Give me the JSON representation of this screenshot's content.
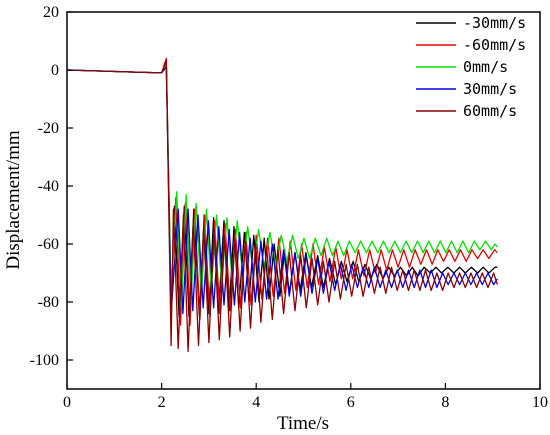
{
  "chart_data": {
    "type": "line",
    "title": "",
    "xlabel": "Time/s",
    "ylabel": "Displacement/mm",
    "xlim": [
      0,
      10
    ],
    "ylim": [
      -110,
      20
    ],
    "x_ticks": [
      0,
      2,
      4,
      6,
      8,
      10
    ],
    "y_ticks": [
      20,
      0,
      -20,
      -40,
      -60,
      -80,
      -100
    ],
    "grid": false,
    "legend_position": "top-right",
    "series": [
      {
        "name": "-30mm/s",
        "color": "#000000",
        "x": [
          0,
          2.0,
          2.1,
          2.2,
          2.27,
          2.37,
          2.48,
          2.58,
          2.68,
          2.8,
          2.9,
          3.0,
          3.1,
          3.2,
          3.32,
          3.43,
          3.53,
          3.63,
          3.75,
          3.85,
          3.95,
          4.06,
          4.17,
          4.27,
          4.38,
          4.5,
          4.6,
          4.7,
          4.82,
          4.93,
          5.05,
          5.17,
          5.3,
          5.42,
          5.55,
          5.68,
          5.8,
          5.92,
          6.05,
          6.17,
          6.3,
          6.42,
          6.55,
          6.68,
          6.8,
          6.92,
          7.05,
          7.18,
          7.3,
          7.42,
          7.55,
          7.68,
          7.8,
          7.92,
          8.05,
          8.18,
          8.3,
          8.42,
          8.55,
          8.68,
          8.8,
          8.92,
          9.05,
          9.1
        ],
        "y": [
          0,
          -1,
          3,
          -85,
          -47,
          -85,
          -47,
          -85,
          -48,
          -85,
          -50,
          -84,
          -51,
          -84,
          -52,
          -83,
          -54,
          -82,
          -56,
          -80,
          -57,
          -80,
          -58,
          -79,
          -60,
          -78,
          -62,
          -77,
          -63,
          -76,
          -63,
          -75,
          -64,
          -75,
          -65,
          -74,
          -66,
          -73,
          -66,
          -73,
          -67,
          -72,
          -67,
          -72,
          -68,
          -71,
          -68,
          -71,
          -68,
          -71,
          -68,
          -70,
          -68,
          -70,
          -68,
          -70,
          -68,
          -70,
          -68,
          -70,
          -68,
          -70,
          -68,
          -68
        ]
      },
      {
        "name": "-60mm/s",
        "color": "#e00000",
        "x": [
          0,
          2.0,
          2.1,
          2.2,
          2.3,
          2.4,
          2.5,
          2.6,
          2.7,
          2.81,
          2.91,
          3.02,
          3.12,
          3.23,
          3.34,
          3.45,
          3.56,
          3.67,
          3.78,
          3.89,
          4.0,
          4.12,
          4.24,
          4.36,
          4.48,
          4.6,
          4.72,
          4.84,
          4.96,
          5.08,
          5.2,
          5.32,
          5.44,
          5.56,
          5.68,
          5.8,
          5.92,
          6.04,
          6.16,
          6.28,
          6.4,
          6.52,
          6.64,
          6.76,
          6.88,
          7.0,
          7.12,
          7.24,
          7.36,
          7.48,
          7.6,
          7.72,
          7.84,
          7.96,
          8.08,
          8.2,
          8.32,
          8.44,
          8.56,
          8.68,
          8.8,
          8.92,
          9.04,
          9.1
        ],
        "y": [
          0,
          -1,
          4,
          -80,
          -44,
          -88,
          -46,
          -88,
          -48,
          -86,
          -50,
          -85,
          -52,
          -84,
          -53,
          -83,
          -55,
          -82,
          -56,
          -81,
          -57,
          -79,
          -58,
          -78,
          -58,
          -77,
          -59,
          -76,
          -60,
          -75,
          -60,
          -74,
          -61,
          -73,
          -61,
          -72,
          -62,
          -72,
          -62,
          -71,
          -62,
          -70,
          -62,
          -69,
          -62,
          -68,
          -62,
          -68,
          -62,
          -67,
          -62,
          -67,
          -62,
          -66,
          -62,
          -66,
          -62,
          -66,
          -62,
          -65,
          -62,
          -65,
          -62,
          -63
        ]
      },
      {
        "name": "0mm/s",
        "color": "#00e000",
        "x": [
          0,
          2.0,
          2.1,
          2.2,
          2.32,
          2.42,
          2.52,
          2.62,
          2.73,
          2.84,
          2.95,
          3.05,
          3.16,
          3.27,
          3.38,
          3.49,
          3.6,
          3.71,
          3.82,
          3.93,
          4.05,
          4.17,
          4.29,
          4.41,
          4.53,
          4.65,
          4.77,
          4.89,
          5.01,
          5.13,
          5.25,
          5.37,
          5.49,
          5.61,
          5.73,
          5.85,
          5.97,
          6.09,
          6.21,
          6.33,
          6.45,
          6.57,
          6.69,
          6.81,
          6.93,
          7.05,
          7.17,
          7.29,
          7.41,
          7.53,
          7.65,
          7.77,
          7.89,
          8.01,
          8.13,
          8.25,
          8.37,
          8.49,
          8.61,
          8.73,
          8.85,
          8.97,
          9.05,
          9.1
        ],
        "y": [
          0,
          -1,
          2,
          -78,
          -42,
          -82,
          -43,
          -80,
          -46,
          -78,
          -48,
          -76,
          -50,
          -74,
          -51,
          -72,
          -52,
          -70,
          -54,
          -69,
          -55,
          -68,
          -56,
          -67,
          -57,
          -66,
          -57,
          -65,
          -58,
          -65,
          -58,
          -64,
          -58,
          -64,
          -59,
          -64,
          -59,
          -63,
          -59,
          -63,
          -59,
          -63,
          -59,
          -63,
          -59,
          -63,
          -59,
          -63,
          -59,
          -63,
          -59,
          -63,
          -59,
          -63,
          -59,
          -63,
          -59,
          -63,
          -59,
          -62,
          -59,
          -62,
          -60,
          -61
        ]
      },
      {
        "name": "30mm/s",
        "color": "#0000e0",
        "x": [
          0,
          2.0,
          2.1,
          2.2,
          2.35,
          2.45,
          2.56,
          2.66,
          2.77,
          2.88,
          2.99,
          3.1,
          3.21,
          3.32,
          3.43,
          3.54,
          3.65,
          3.76,
          3.87,
          3.98,
          4.1,
          4.22,
          4.34,
          4.46,
          4.58,
          4.7,
          4.82,
          4.94,
          5.06,
          5.18,
          5.3,
          5.42,
          5.54,
          5.66,
          5.78,
          5.9,
          6.02,
          6.14,
          6.26,
          6.38,
          6.5,
          6.62,
          6.74,
          6.86,
          6.98,
          7.1,
          7.22,
          7.34,
          7.46,
          7.58,
          7.7,
          7.82,
          7.94,
          8.06,
          8.18,
          8.3,
          8.42,
          8.54,
          8.66,
          8.78,
          8.9,
          9.02,
          9.1
        ],
        "y": [
          0,
          -1,
          1,
          -84,
          -48,
          -84,
          -48,
          -83,
          -50,
          -82,
          -52,
          -82,
          -54,
          -81,
          -55,
          -81,
          -56,
          -80,
          -58,
          -80,
          -59,
          -79,
          -60,
          -79,
          -62,
          -78,
          -63,
          -78,
          -64,
          -77,
          -65,
          -77,
          -66,
          -76,
          -67,
          -76,
          -67,
          -75,
          -68,
          -75,
          -68,
          -75,
          -69,
          -75,
          -69,
          -75,
          -69,
          -75,
          -69,
          -75,
          -69,
          -75,
          -70,
          -74,
          -70,
          -74,
          -70,
          -74,
          -70,
          -74,
          -70,
          -74,
          -72
        ]
      },
      {
        "name": "60mm/s",
        "color": "#8b0000",
        "x": [
          0,
          2.0,
          2.1,
          2.2,
          2.25,
          2.35,
          2.46,
          2.56,
          2.67,
          2.78,
          2.89,
          3.0,
          3.11,
          3.22,
          3.33,
          3.44,
          3.55,
          3.66,
          3.77,
          3.88,
          3.99,
          4.1,
          4.22,
          4.34,
          4.46,
          4.58,
          4.7,
          4.82,
          4.94,
          5.06,
          5.18,
          5.3,
          5.42,
          5.54,
          5.66,
          5.78,
          5.9,
          6.02,
          6.14,
          6.26,
          6.38,
          6.5,
          6.62,
          6.74,
          6.86,
          6.98,
          7.1,
          7.22,
          7.34,
          7.46,
          7.58,
          7.7,
          7.82,
          7.94,
          8.06,
          8.18,
          8.3,
          8.42,
          8.54,
          8.66,
          8.78,
          8.9,
          9.02,
          9.1
        ],
        "y": [
          0,
          -1,
          3,
          -95,
          -48,
          -96,
          -50,
          -97,
          -52,
          -95,
          -54,
          -94,
          -55,
          -93,
          -57,
          -92,
          -58,
          -90,
          -59,
          -89,
          -60,
          -87,
          -61,
          -86,
          -62,
          -84,
          -63,
          -83,
          -64,
          -82,
          -65,
          -81,
          -66,
          -80,
          -66,
          -79,
          -67,
          -78,
          -67,
          -78,
          -68,
          -77,
          -68,
          -77,
          -68,
          -76,
          -69,
          -76,
          -69,
          -76,
          -69,
          -76,
          -70,
          -76,
          -70,
          -75,
          -70,
          -75,
          -70,
          -75,
          -70,
          -75,
          -70,
          -74
        ]
      }
    ]
  }
}
